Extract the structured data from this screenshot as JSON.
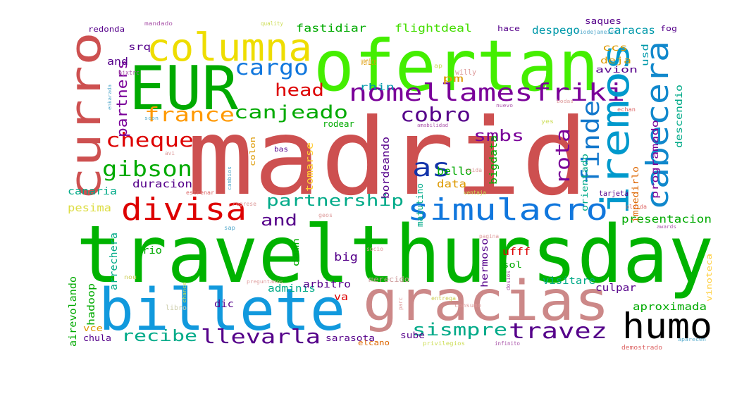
{
  "words": [
    {
      "text": "madrid",
      "color": "#cd5050"
    },
    {
      "text": "travelthursday",
      "color": "#00b300"
    },
    {
      "text": "ofertan",
      "color": "#44ee00"
    },
    {
      "text": "billete",
      "color": "#1199dd"
    },
    {
      "text": "gracias",
      "color": "#cc8888"
    },
    {
      "text": "EUR",
      "color": "#00aa00"
    },
    {
      "text": "curro",
      "color": "#cd5050"
    },
    {
      "text": "iremos",
      "color": "#0099cc"
    },
    {
      "text": "cabecera",
      "color": "#1188cc"
    },
    {
      "text": "columna",
      "color": "#eedd00"
    },
    {
      "text": "humo",
      "color": "#000000"
    },
    {
      "text": "nomellamesfriki",
      "color": "#7a0099"
    },
    {
      "text": "simulacro",
      "color": "#1177dd"
    },
    {
      "text": "divisa",
      "color": "#dd0000"
    },
    {
      "text": "finde",
      "color": "#1177cc"
    },
    {
      "text": "canjeado",
      "color": "#00aa00"
    },
    {
      "text": "france",
      "color": "#ff9900"
    },
    {
      "text": "gibson",
      "color": "#00aa00"
    },
    {
      "text": "cheque",
      "color": "#dd0000"
    },
    {
      "text": "cargo",
      "color": "#1177dd"
    },
    {
      "text": "cobro",
      "color": "#55008a"
    },
    {
      "text": "travez",
      "color": "#55008a"
    },
    {
      "text": "sismpre",
      "color": "#00aa88"
    },
    {
      "text": "llevarla",
      "color": "#55008a"
    },
    {
      "text": "rota",
      "color": "#7a0099"
    },
    {
      "text": "as",
      "color": "#1133aa"
    },
    {
      "text": "partnership",
      "color": "#00aa88"
    },
    {
      "text": "head",
      "color": "#dd0000"
    },
    {
      "text": "partners",
      "color": "#7a0099"
    },
    {
      "text": "smbs",
      "color": "#7a0099"
    },
    {
      "text": "recibe",
      "color": "#00aa88"
    },
    {
      "text": "and",
      "color": "#55008a"
    },
    {
      "text": "fastidiar",
      "color": "#00aa00"
    },
    {
      "text": "flightdeal",
      "color": "#44dd00"
    },
    {
      "text": "despego",
      "color": "#0099aa"
    },
    {
      "text": "caracas",
      "color": "#0099aa"
    },
    {
      "text": "presentacion",
      "color": "#00aa00"
    },
    {
      "text": "aproximada",
      "color": "#00aa00"
    },
    {
      "text": "duracion",
      "color": "#55008a"
    },
    {
      "text": "canaria",
      "color": "#00aa88"
    },
    {
      "text": "pesima",
      "color": "#dddd44"
    },
    {
      "text": "bello",
      "color": "#00aa00"
    },
    {
      "text": "data",
      "color": "#dd9900"
    },
    {
      "text": "bordeando",
      "color": "#55008a"
    },
    {
      "text": "bigdata",
      "color": "#00aa00"
    },
    {
      "text": "programado",
      "color": "#7a0099"
    },
    {
      "text": "descendio",
      "color": "#00aa88"
    },
    {
      "text": "orientado",
      "color": "#00aa88"
    },
    {
      "text": "impedirlo",
      "color": "#dd6600"
    },
    {
      "text": "tomarse",
      "color": "#ffcc33"
    },
    {
      "text": "arrechera",
      "color": "#00aa88"
    },
    {
      "text": "airevolando",
      "color": "#00aa00"
    },
    {
      "text": "hadoop",
      "color": "#00aa00"
    },
    {
      "text": "adminis",
      "color": "#00aa88"
    },
    {
      "text": "arbitro",
      "color": "#55008a"
    },
    {
      "text": "hermoso",
      "color": "#55008a"
    },
    {
      "text": "matutino",
      "color": "#00aa88"
    },
    {
      "text": "ufff",
      "color": "#dd0000"
    },
    {
      "text": "visitare",
      "color": "#00aa88"
    },
    {
      "text": "culpar",
      "color": "#55008a"
    },
    {
      "text": "sarasota",
      "color": "#55008a"
    },
    {
      "text": "sube",
      "color": "#55008a"
    },
    {
      "text": "elcano",
      "color": "#dd6600"
    },
    {
      "text": "chula",
      "color": "#55008a"
    },
    {
      "text": "vce",
      "color": "#dd9900"
    },
    {
      "text": "dic",
      "color": "#55008a"
    },
    {
      "text": "big",
      "color": "#55008a"
    },
    {
      "text": "rio",
      "color": "#00aa00"
    },
    {
      "text": "va",
      "color": "#dd0000"
    },
    {
      "text": "sol",
      "color": "#00aa00"
    },
    {
      "text": "damn",
      "color": "#00aa00"
    },
    {
      "text": "and",
      "color": "#55008a"
    },
    {
      "text": "srq",
      "color": "#55008a"
    },
    {
      "text": "rhin",
      "color": "#0099aa"
    },
    {
      "text": "venice",
      "color": "#dd9900"
    },
    {
      "text": "pm",
      "color": "#dd9900"
    },
    {
      "text": "ccs",
      "color": "#dd9900"
    },
    {
      "text": "deja",
      "color": "#dd9900"
    },
    {
      "text": "avion",
      "color": "#55008a"
    },
    {
      "text": "portada",
      "color": "#55008a"
    },
    {
      "text": "usd",
      "color": "#0099aa"
    },
    {
      "text": "fog",
      "color": "#55008a"
    },
    {
      "text": "saques",
      "color": "#55008a"
    },
    {
      "text": "hace",
      "color": "#55008a"
    },
    {
      "text": "redonda",
      "color": "#55008a"
    },
    {
      "text": "mandado",
      "color": "#aa55aa"
    },
    {
      "text": "quality",
      "color": "#ccdd55"
    },
    {
      "text": "bjxtrc",
      "color": "#aa55aa"
    },
    {
      "text": "rodear",
      "color": "#00aa00"
    },
    {
      "text": "colon",
      "color": "#dd9900"
    },
    {
      "text": "bas",
      "color": "#55008a"
    },
    {
      "text": "willy",
      "color": "#dd9999"
    },
    {
      "text": "vinoteca",
      "color": "#ffcc33"
    },
    {
      "text": "riodejaneiro",
      "color": "#55aacc"
    },
    {
      "text": "tarjeta",
      "color": "#55008a"
    },
    {
      "text": "olvida",
      "color": "#dd6666"
    },
    {
      "text": "estrenar",
      "color": "#dd6666"
    },
    {
      "text": "regrese",
      "color": "#dd9999"
    },
    {
      "text": "caida",
      "color": "#dd9999"
    },
    {
      "text": "ventaja",
      "color": "#ccdd55"
    },
    {
      "text": "cambios",
      "color": "#55aacc"
    },
    {
      "text": "sap",
      "color": "#55aacc"
    },
    {
      "text": "geos",
      "color": "#dd9999"
    },
    {
      "text": "pagina",
      "color": "#dd9999"
    },
    {
      "text": "socio",
      "color": "#dd9999"
    },
    {
      "text": "merecido",
      "color": "#cc9999"
    },
    {
      "text": "dosios",
      "color": "#aa55aa"
    },
    {
      "text": "libro",
      "color": "#ccccaa"
    },
    {
      "text": "chance",
      "color": "#ccdd55"
    },
    {
      "text": "consumo",
      "color": "#dd9999"
    },
    {
      "text": "entrega",
      "color": "#cccc55"
    },
    {
      "text": "parc",
      "color": "#dd9999"
    },
    {
      "text": "privilegios",
      "color": "#ccdd55"
    },
    {
      "text": "infinito",
      "color": "#aa55aa"
    },
    {
      "text": "demostrado",
      "color": "#dd6666"
    },
    {
      "text": "aparecen",
      "color": "#55aacc"
    },
    {
      "text": "awards",
      "color": "#aa55aa"
    },
    {
      "text": "amabilidad",
      "color": "#aa55aa"
    },
    {
      "text": "yes",
      "color": "#ccdd55"
    },
    {
      "text": "echan",
      "color": "#dd6666"
    },
    {
      "text": "bodas",
      "color": "#dd9999"
    },
    {
      "text": "nuevo",
      "color": "#aa55aa"
    },
    {
      "text": "scon",
      "color": "#55aacc"
    },
    {
      "text": "enkarada",
      "color": "#55aacc"
    },
    {
      "text": "ap",
      "color": "#ccdd55"
    },
    {
      "text": "avi",
      "color": "#dd9999"
    },
    {
      "text": "preguntamos",
      "color": "#dd9999"
    },
    {
      "text": "nou",
      "color": "#cccc55"
    }
  ]
}
